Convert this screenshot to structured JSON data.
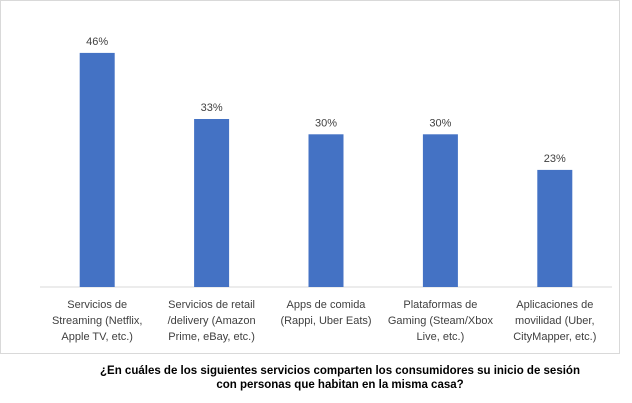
{
  "chart_data": {
    "type": "bar",
    "categories": [
      [
        "Servicios de",
        "Streaming (Netflix,",
        "Apple TV, etc.)"
      ],
      [
        "Servicios de retail",
        "/delivery (Amazon",
        "Prime, eBay, etc.)"
      ],
      [
        "Apps de comida",
        "(Rappi, Uber Eats)"
      ],
      [
        "Plataformas de",
        "Gaming (Steam/Xbox",
        "Live, etc.)"
      ],
      [
        "Aplicaciones de",
        "movilidad (Uber,",
        "CityMapper, etc.)"
      ]
    ],
    "values": [
      46,
      33,
      30,
      30,
      23
    ],
    "data_labels": [
      "46%",
      "33%",
      "30%",
      "30%",
      "23%"
    ],
    "ylim": [
      0,
      50
    ],
    "bar_color": "#4472c4",
    "axis_color": "#d9d9d9",
    "grid": false,
    "legend": "none",
    "title": ""
  },
  "caption": {
    "line1": "¿En cuáles de los siguientes servicios comparten los consumidores su inicio de sesión",
    "line2": "con personas que habitan en la misma casa?"
  }
}
